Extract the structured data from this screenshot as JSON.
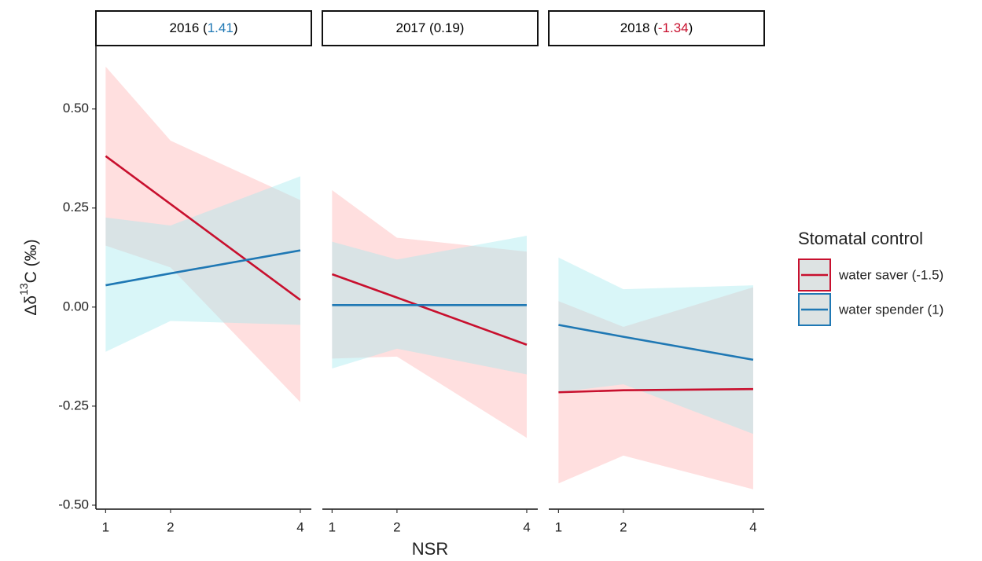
{
  "chart_data": {
    "type": "line",
    "y_label_parts": [
      "Δδ",
      "13",
      "C (‰)"
    ],
    "x_label": "NSR",
    "legend_title": "Stomatal control",
    "legend_position": "right",
    "x": [
      1,
      2,
      4
    ],
    "xlim": [
      0.85,
      4.17
    ],
    "ylim": [
      -0.51,
      0.66
    ],
    "xticks": [
      1,
      2,
      4
    ],
    "yticks": [
      {
        "value": -0.5,
        "label": "-0.50"
      },
      {
        "value": -0.25,
        "label": "-0.25"
      },
      {
        "value": 0,
        "label": "0.00"
      },
      {
        "value": 0.25,
        "label": "0.25"
      },
      {
        "value": 0.5,
        "label": "0.50"
      }
    ],
    "series": [
      {
        "name": "water saver (-1.5)",
        "color": "#c8102e",
        "ribbon_color": "#ffb0b0"
      },
      {
        "name": "water spender (1)",
        "color": "#1f78b4",
        "ribbon_color": "#9fe8ee"
      }
    ],
    "facets": [
      {
        "title_parts": [
          "2016 (",
          "1.41",
          ")"
        ],
        "title_colors": [
          "#000000",
          "#1f78b4",
          "#000000"
        ],
        "series": [
          {
            "values": [
              0.381,
              0.26,
              0.018
            ],
            "lower": [
              0.155,
              0.1,
              -0.24
            ],
            "upper": [
              0.607,
              0.42,
              0.27
            ]
          },
          {
            "values": [
              0.055,
              0.085,
              0.143
            ],
            "lower": [
              -0.113,
              -0.035,
              -0.045
            ],
            "upper": [
              0.226,
              0.206,
              0.33
            ]
          }
        ]
      },
      {
        "title_parts": [
          "2017 (0.19)"
        ],
        "title_colors": [
          "#000000"
        ],
        "series": [
          {
            "values": [
              0.083,
              0.024,
              -0.095
            ],
            "lower": [
              -0.13,
              -0.125,
              -0.33
            ],
            "upper": [
              0.295,
              0.175,
              0.14
            ]
          },
          {
            "values": [
              0.005,
              0.005,
              0.005
            ],
            "lower": [
              -0.155,
              -0.105,
              -0.17
            ],
            "upper": [
              0.165,
              0.12,
              0.18
            ]
          }
        ]
      },
      {
        "title_parts": [
          "2018 (",
          "-1.34",
          ")"
        ],
        "title_colors": [
          "#000000",
          "#c8102e",
          "#000000"
        ],
        "series": [
          {
            "values": [
              -0.215,
              -0.21,
              -0.207
            ],
            "lower": [
              -0.445,
              -0.375,
              -0.46
            ],
            "upper": [
              0.015,
              -0.05,
              0.05
            ]
          },
          {
            "values": [
              -0.045,
              -0.075,
              -0.133
            ],
            "lower": [
              -0.215,
              -0.195,
              -0.32
            ],
            "upper": [
              0.125,
              0.045,
              0.055
            ]
          }
        ]
      }
    ]
  }
}
